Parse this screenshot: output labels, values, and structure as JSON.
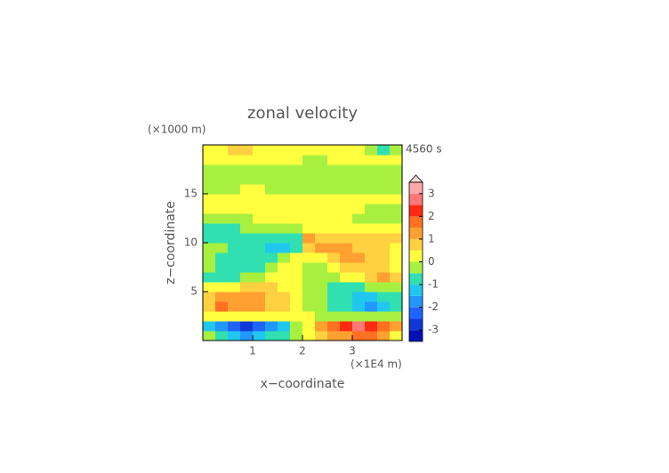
{
  "chart_data": {
    "type": "contour",
    "title": "zonal velocity",
    "x_label": "x−coordinate",
    "y_label": "z−coordinate",
    "x_unit": "(×1E4 m)",
    "y_unit": "(×1000 m)",
    "time_label": "4560 s",
    "xlim": [
      0,
      4
    ],
    "ylim": [
      0,
      20
    ],
    "xticks": [
      1,
      2,
      3
    ],
    "yticks": [
      5,
      10,
      15
    ],
    "x": [
      0.125,
      0.375,
      0.625,
      0.875,
      1.125,
      1.375,
      1.625,
      1.875,
      2.125,
      2.375,
      2.625,
      2.875,
      3.125,
      3.375,
      3.625,
      3.875
    ],
    "y": [
      0.5,
      1.5,
      2.5,
      3.5,
      4.5,
      5.5,
      6.5,
      7.5,
      8.5,
      9.5,
      10.5,
      11.5,
      12.5,
      13.5,
      14.5,
      15.5,
      16.5,
      17.5,
      18.5,
      19.5
    ],
    "z": [
      [
        -0.3,
        -0.8,
        -1.3,
        -1.6,
        -1.4,
        -1.0,
        -0.6,
        -0.2,
        0.2,
        0.6,
        1.0,
        1.4,
        1.8,
        1.6,
        1.0,
        0.4
      ],
      [
        -1.2,
        -1.8,
        -2.2,
        -2.6,
        -2.3,
        -1.8,
        -1.2,
        -0.4,
        0.4,
        1.2,
        1.8,
        2.3,
        2.6,
        2.2,
        1.8,
        1.2
      ],
      [
        0.2,
        0.3,
        0.3,
        0.4,
        0.3,
        0.2,
        0.1,
        0.0,
        0.0,
        -0.1,
        -0.2,
        -0.3,
        -0.4,
        -0.3,
        -0.3,
        -0.2
      ],
      [
        0.8,
        1.6,
        1.4,
        1.2,
        1.0,
        0.8,
        0.5,
        0.2,
        -0.2,
        -0.5,
        -0.8,
        -1.0,
        -1.2,
        -1.6,
        -1.5,
        -0.8
      ],
      [
        0.6,
        1.2,
        1.1,
        1.0,
        1.0,
        0.8,
        0.5,
        0.2,
        -0.2,
        -0.5,
        -0.8,
        -1.0,
        -1.1,
        -1.2,
        -1.0,
        -0.6
      ],
      [
        0.1,
        0.3,
        0.4,
        0.6,
        0.7,
        0.6,
        0.3,
        0.1,
        -0.1,
        -0.3,
        -0.6,
        -0.7,
        -0.6,
        -0.4,
        -0.3,
        -0.1
      ],
      [
        -0.6,
        -1.0,
        -0.8,
        -0.4,
        -0.2,
        0.1,
        0.2,
        0.1,
        -0.1,
        -0.2,
        -0.1,
        0.2,
        0.4,
        0.8,
        1.0,
        0.6
      ],
      [
        -0.4,
        -0.7,
        -0.9,
        -0.9,
        -0.6,
        -0.2,
        0.1,
        0.2,
        -0.2,
        -0.1,
        0.2,
        0.6,
        0.9,
        0.9,
        0.7,
        0.4
      ],
      [
        -0.3,
        -0.6,
        -0.8,
        -1.0,
        -1.0,
        -0.8,
        -0.3,
        0.0,
        0.0,
        0.3,
        0.8,
        1.0,
        1.0,
        0.8,
        0.6,
        0.3
      ],
      [
        -0.2,
        -0.5,
        -0.7,
        -0.8,
        -1.0,
        -1.2,
        -1.3,
        -0.8,
        0.8,
        1.3,
        1.2,
        1.0,
        0.8,
        0.7,
        0.5,
        0.2
      ],
      [
        -0.6,
        -0.6,
        -0.7,
        -0.7,
        -0.7,
        -0.7,
        -0.8,
        -1.0,
        1.0,
        0.8,
        0.7,
        0.7,
        0.7,
        0.6,
        0.6,
        0.6
      ],
      [
        -0.6,
        -0.6,
        -0.6,
        -0.5,
        -0.4,
        -0.3,
        -0.2,
        -0.1,
        0.1,
        0.2,
        0.3,
        0.4,
        0.3,
        0.2,
        0.1,
        0.1
      ],
      [
        -0.3,
        -0.3,
        -0.2,
        -0.1,
        0.0,
        0.1,
        0.1,
        0.1,
        0.1,
        0.1,
        0.1,
        0.0,
        -0.1,
        -0.2,
        -0.3,
        -0.3
      ],
      [
        0.2,
        0.2,
        0.2,
        0.2,
        0.2,
        0.2,
        0.2,
        0.2,
        0.2,
        0.2,
        0.2,
        0.2,
        0.2,
        -0.1,
        -0.2,
        -0.2
      ],
      [
        0.3,
        0.3,
        0.3,
        0.3,
        0.3,
        0.3,
        0.3,
        0.3,
        0.3,
        0.3,
        0.3,
        0.3,
        0.3,
        0.2,
        0.2,
        0.2
      ],
      [
        -0.2,
        -0.2,
        -0.2,
        0.2,
        0.2,
        -0.2,
        -0.2,
        -0.2,
        -0.2,
        -0.2,
        -0.2,
        -0.2,
        -0.2,
        -0.2,
        -0.2,
        -0.2
      ],
      [
        -0.3,
        -0.3,
        -0.3,
        -0.3,
        -0.3,
        -0.3,
        -0.3,
        -0.3,
        -0.3,
        -0.3,
        -0.3,
        -0.3,
        -0.3,
        -0.3,
        -0.3,
        -0.3
      ],
      [
        -0.2,
        -0.2,
        -0.2,
        -0.2,
        -0.2,
        -0.2,
        -0.2,
        -0.2,
        -0.2,
        -0.2,
        -0.2,
        -0.2,
        -0.2,
        -0.2,
        -0.2,
        -0.2
      ],
      [
        0.2,
        0.2,
        0.2,
        0.2,
        0.2,
        0.2,
        0.2,
        0.2,
        -0.2,
        -0.2,
        0.2,
        0.2,
        0.2,
        0.2,
        0.2,
        0.2
      ],
      [
        0.3,
        0.3,
        0.6,
        0.6,
        0.3,
        0.3,
        0.3,
        0.3,
        0.3,
        0.3,
        0.3,
        0.3,
        0.3,
        -0.3,
        -0.6,
        -0.3
      ]
    ],
    "levels": [
      -3.5,
      -3,
      -2.5,
      -2,
      -1.5,
      -1,
      -0.5,
      0,
      0.5,
      1,
      1.5,
      2,
      2.5,
      3,
      3.5
    ],
    "colors": [
      "#000090",
      "#0010b8",
      "#1038d8",
      "#2064ff",
      "#2098ff",
      "#20c8f0",
      "#30e0b0",
      "#a8f040",
      "#ffff40",
      "#ffd040",
      "#ffa030",
      "#ff7020",
      "#ff2a10",
      "#ff7878",
      "#ffa8a8",
      "#ffd8d8"
    ],
    "colorbar_ticks": [
      -3,
      -2,
      -1,
      0,
      1,
      2,
      3
    ]
  }
}
